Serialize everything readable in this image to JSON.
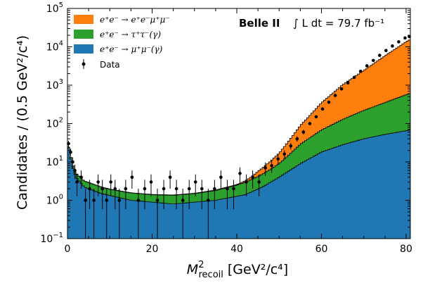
{
  "chart_data": {
    "type": "stacked-histogram",
    "xlabel_main": "M",
    "xlabel_sup": "2",
    "xlabel_sub": "recoil",
    "xlabel_unit": "[GeV²/c⁴]",
    "ylabel": "Candidates / (0.5 GeV²/c⁴)",
    "xlim": [
      0,
      81
    ],
    "ylim": [
      0.1,
      100000
    ],
    "yscale": "log",
    "bin_width": 0.5,
    "x_ticks": [
      "0",
      "20",
      "40",
      "60",
      "80"
    ],
    "y_ticks": [
      {
        "base": "10",
        "exp": "−1"
      },
      {
        "base": "10",
        "exp": "0"
      },
      {
        "base": "10",
        "exp": "1"
      },
      {
        "base": "10",
        "exp": "2"
      },
      {
        "base": "10",
        "exp": "3"
      },
      {
        "base": "10",
        "exp": "4"
      },
      {
        "base": "10",
        "exp": "5"
      }
    ],
    "experiment": "Belle II",
    "luminosity": "∫ L dt = 79.7 fb⁻¹",
    "legend_position": "top-left",
    "series": [
      {
        "name": "e⁺e⁻ → μ⁺μ⁻(γ)",
        "color": "#1f77b4",
        "knots": [
          [
            0,
            30
          ],
          [
            0.5,
            18
          ],
          [
            1,
            8
          ],
          [
            2,
            4
          ],
          [
            4,
            2.2
          ],
          [
            8,
            1.5
          ],
          [
            15,
            1.0
          ],
          [
            25,
            0.8
          ],
          [
            35,
            1.0
          ],
          [
            42,
            1.4
          ],
          [
            46,
            2.2
          ],
          [
            50,
            4
          ],
          [
            55,
            9
          ],
          [
            60,
            18
          ],
          [
            65,
            28
          ],
          [
            70,
            40
          ],
          [
            75,
            52
          ],
          [
            80,
            65
          ],
          [
            81,
            68
          ]
        ]
      },
      {
        "name": "e⁺e⁻ → τ⁺τ⁻(γ)",
        "color": "#2ca02c",
        "knots": [
          [
            0,
            1.2
          ],
          [
            2,
            1.1
          ],
          [
            5,
            0.9
          ],
          [
            10,
            0.6
          ],
          [
            20,
            0.5
          ],
          [
            30,
            0.6
          ],
          [
            35,
            0.8
          ],
          [
            40,
            1.2
          ],
          [
            45,
            2.2
          ],
          [
            48,
            3.5
          ],
          [
            50,
            5
          ],
          [
            55,
            20
          ],
          [
            60,
            50
          ],
          [
            65,
            100
          ],
          [
            70,
            180
          ],
          [
            75,
            300
          ],
          [
            80,
            500
          ],
          [
            81,
            540
          ]
        ]
      },
      {
        "name": "e⁺e⁻ → e⁺e⁻μ⁺μ⁻",
        "color": "#ff7f0e",
        "knots": [
          [
            0,
            0.02
          ],
          [
            30,
            0.03
          ],
          [
            40,
            0.1
          ],
          [
            43,
            0.5
          ],
          [
            45,
            1.5
          ],
          [
            50,
            8
          ],
          [
            55,
            60
          ],
          [
            60,
            280
          ],
          [
            65,
            900
          ],
          [
            70,
            2200
          ],
          [
            75,
            5500
          ],
          [
            80,
            13000
          ],
          [
            81,
            15000
          ]
        ]
      }
    ],
    "data": {
      "name": "Data",
      "color": "#000000",
      "points": [
        [
          0.25,
          30
        ],
        [
          0.75,
          18
        ],
        [
          1.25,
          10
        ],
        [
          1.75,
          6
        ],
        [
          2.25,
          3
        ],
        [
          3.25,
          4
        ],
        [
          4.25,
          1
        ],
        [
          5.25,
          2
        ],
        [
          6.25,
          1
        ],
        [
          7.25,
          3
        ],
        [
          8.25,
          2
        ],
        [
          9.25,
          1
        ],
        [
          10.25,
          3
        ],
        [
          11.25,
          2
        ],
        [
          12.25,
          1
        ],
        [
          13.75,
          2
        ],
        [
          15.25,
          4
        ],
        [
          16.75,
          1
        ],
        [
          18.25,
          2
        ],
        [
          19.75,
          3
        ],
        [
          21.25,
          1
        ],
        [
          22.75,
          2
        ],
        [
          24.25,
          4
        ],
        [
          25.75,
          2
        ],
        [
          27.25,
          1
        ],
        [
          28.75,
          2
        ],
        [
          30.25,
          3
        ],
        [
          31.75,
          2
        ],
        [
          33.25,
          1
        ],
        [
          34.75,
          2
        ],
        [
          36.25,
          4
        ],
        [
          37.75,
          2
        ],
        [
          39.25,
          2
        ],
        [
          40.75,
          5
        ],
        [
          42.25,
          3
        ],
        [
          43.75,
          4
        ],
        [
          45.25,
          3
        ],
        [
          46.75,
          7
        ],
        [
          48.25,
          8
        ],
        [
          49.75,
          12
        ],
        [
          51.25,
          16
        ],
        [
          52.75,
          26
        ],
        [
          54.25,
          40
        ],
        [
          55.75,
          60
        ],
        [
          57.25,
          100
        ],
        [
          58.75,
          150
        ],
        [
          60.25,
          240
        ],
        [
          61.75,
          360
        ],
        [
          63.25,
          540
        ],
        [
          64.75,
          800
        ],
        [
          66.25,
          1150
        ],
        [
          67.75,
          1600
        ],
        [
          69.25,
          2300
        ],
        [
          70.75,
          3200
        ],
        [
          72.25,
          4400
        ],
        [
          73.75,
          6000
        ],
        [
          75.25,
          8000
        ],
        [
          76.75,
          10500
        ],
        [
          78.25,
          13500
        ],
        [
          79.75,
          17000
        ],
        [
          80.75,
          18500
        ]
      ]
    }
  }
}
